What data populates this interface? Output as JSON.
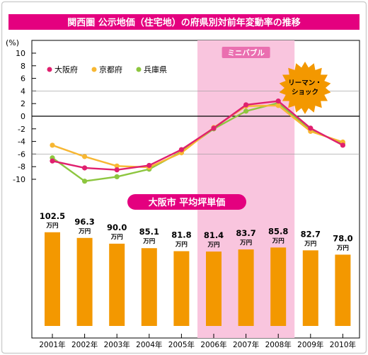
{
  "chart_data": [
    {
      "type": "line",
      "title": "関西圏 公示地価（住宅地）の府県別対前年変動率の推移",
      "yunit": "(%)",
      "ylim": [
        -10,
        10
      ],
      "yticks": [
        "10",
        "8",
        "6",
        "4",
        "2",
        "0",
        "-2",
        "-4",
        "-6",
        "-8",
        "-10"
      ],
      "x": [
        "2001年",
        "2002年",
        "2003年",
        "2004年",
        "2005年",
        "2006年",
        "2007年",
        "2008年",
        "2009年",
        "2010年"
      ],
      "series": [
        {
          "name": "大阪府",
          "color": "#e0206f",
          "values": [
            -7.1,
            -8.2,
            -8.5,
            -7.8,
            -5.3,
            -1.9,
            1.8,
            2.4,
            -1.9,
            -4.6
          ]
        },
        {
          "name": "京都府",
          "color": "#f7b733",
          "values": [
            -4.6,
            -6.4,
            -7.9,
            -8.1,
            -5.8,
            -1.8,
            1.6,
            1.7,
            -2.4,
            -4.1
          ]
        },
        {
          "name": "兵庫県",
          "color": "#8dc63f",
          "values": [
            -6.6,
            -10.3,
            -9.6,
            -8.4,
            -5.6,
            -2.0,
            0.8,
            2.1,
            -2.2,
            -4.3
          ]
        }
      ],
      "legend_position": "top-left",
      "grid": false
    },
    {
      "type": "bar",
      "title": "大阪市 平均坪単価",
      "categories": [
        "2001年",
        "2002年",
        "2003年",
        "2004年",
        "2005年",
        "2006年",
        "2007年",
        "2008年",
        "2009年",
        "2010年"
      ],
      "values": [
        102.5,
        96.3,
        90.0,
        85.1,
        81.8,
        81.4,
        83.7,
        85.8,
        82.7,
        78.0
      ],
      "value_labels": [
        "102.5",
        "96.3",
        "90.0",
        "85.1",
        "81.8",
        "81.4",
        "83.7",
        "85.8",
        "82.7",
        "78.0"
      ],
      "unit": "万円",
      "color": "#f39800"
    }
  ],
  "annotations": {
    "highlight_label": "ミニバブル",
    "highlight_range": [
      "2006年",
      "2008年"
    ],
    "burst_label_line1": "リーマン・",
    "burst_label_line2": "ショック"
  },
  "colors": {
    "title_bar": "#e4007f",
    "highlight": "#f9c5de",
    "highlight_label_bg": "#ea6fb0",
    "burst": "#f39800"
  }
}
